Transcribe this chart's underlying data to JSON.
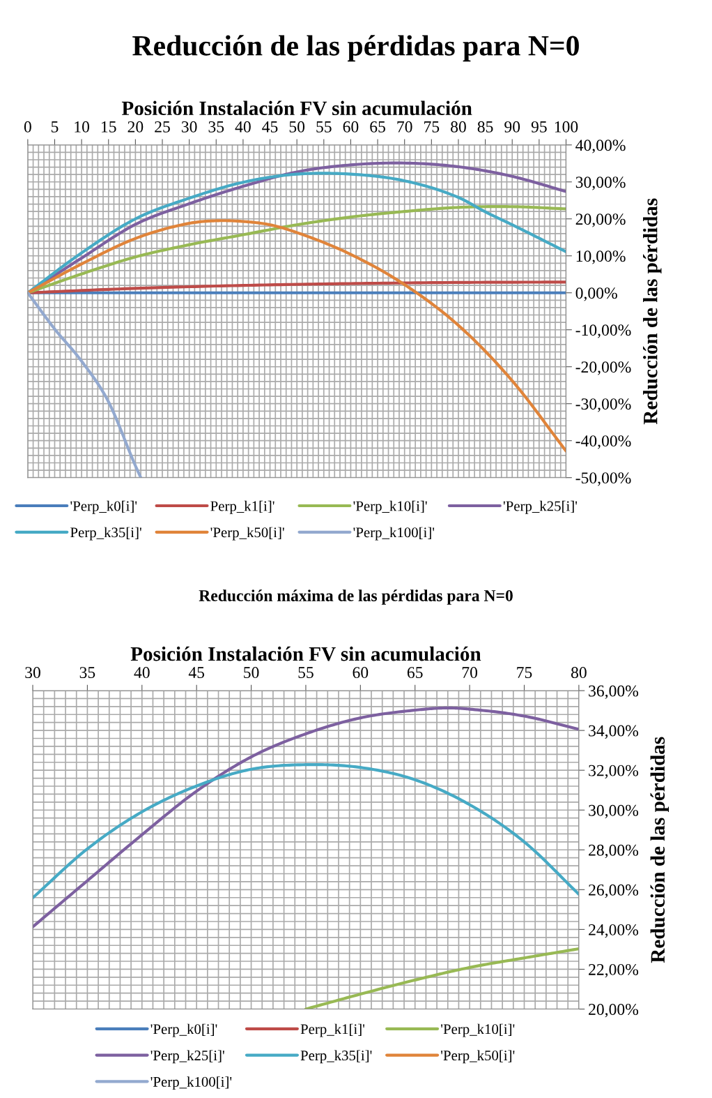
{
  "chart_data": [
    {
      "type": "line",
      "title": "Reducción de las pérdidas para N=0",
      "xlabel": "Posición Instalación FV sin acumulación",
      "ylabel": "Reducción de las pérdidas",
      "xlim": [
        0,
        100
      ],
      "xticks": [
        0,
        5,
        10,
        15,
        20,
        25,
        30,
        35,
        40,
        45,
        50,
        55,
        60,
        65,
        70,
        75,
        80,
        85,
        90,
        95,
        100
      ],
      "ylim": [
        -50,
        40
      ],
      "yticks": [
        {
          "value": -50,
          "label": "-50,00%"
        },
        {
          "value": -40,
          "label": "-40,00%"
        },
        {
          "value": -30,
          "label": "-30,00%"
        },
        {
          "value": -20,
          "label": "-20,00%"
        },
        {
          "value": -10,
          "label": "-10,00%"
        },
        {
          "value": 0,
          "label": "0,00%"
        },
        {
          "value": 10,
          "label": "10,00%"
        },
        {
          "value": 20,
          "label": "20,00%"
        },
        {
          "value": 30,
          "label": "30,00%"
        },
        {
          "value": 40,
          "label": "40,00%"
        }
      ],
      "grid": true,
      "legend": "bottom",
      "marker": "none",
      "line_style": "solid",
      "series": [
        {
          "name": "'Perp_k0[i]'",
          "color": "#4a7ebb",
          "x": [
            0,
            100
          ],
          "values": [
            0,
            0
          ]
        },
        {
          "name": "Perp_k1[i]'",
          "color": "#be4b48",
          "x": [
            0,
            20,
            40,
            60,
            80,
            100
          ],
          "values": [
            0,
            1.2,
            2.0,
            2.5,
            2.8,
            2.9
          ]
        },
        {
          "name": "'Perp_k10[i]'",
          "color": "#98b954",
          "x": [
            0,
            10,
            20,
            30,
            40,
            50,
            60,
            70,
            80,
            90,
            100
          ],
          "values": [
            0,
            5.1,
            9.7,
            13.0,
            15.7,
            18.4,
            20.5,
            22.0,
            23.1,
            23.3,
            22.7
          ]
        },
        {
          "name": "'Perp_k25[i]'",
          "color": "#7d60a0",
          "x": [
            0,
            10,
            20,
            30,
            40,
            50,
            60,
            70,
            80,
            90,
            100
          ],
          "values": [
            0,
            9.4,
            18.5,
            24.1,
            28.8,
            32.7,
            34.6,
            35.1,
            34.1,
            31.5,
            27.4
          ]
        },
        {
          "name": "Perp_k35[i]'",
          "color": "#46aac5",
          "x": [
            0,
            10,
            20,
            30,
            40,
            50,
            60,
            70,
            80,
            85,
            90,
            100
          ],
          "values": [
            0,
            10.8,
            20.0,
            25.6,
            29.9,
            32.1,
            32.1,
            30.3,
            25.8,
            21.9,
            18.4,
            11.1
          ]
        },
        {
          "name": "'Perp_k50[i]'",
          "color": "#e0843a",
          "x": [
            0,
            10,
            20,
            30,
            35,
            40,
            45,
            50,
            60,
            70,
            80,
            90,
            100
          ],
          "values": [
            0,
            7.8,
            14.7,
            18.8,
            19.5,
            19.3,
            18.4,
            16.3,
            10.4,
            2.2,
            -8.8,
            -23.8,
            -42.8
          ]
        },
        {
          "name": "'Perp_k100[i]'",
          "color": "#93a9cf",
          "x": [
            0,
            5,
            10,
            15,
            20,
            21
          ],
          "values": [
            0,
            -9.8,
            -18.5,
            -29.5,
            -46.8,
            -50
          ]
        }
      ]
    },
    {
      "type": "line",
      "title": "Reducción máxima de las pérdidas para N=0",
      "xlabel": "Posición Instalación FV sin acumulación",
      "ylabel": "Reducción de las pérdidas",
      "xlim": [
        30,
        80
      ],
      "xticks": [
        30,
        35,
        40,
        45,
        50,
        55,
        60,
        65,
        70,
        75,
        80
      ],
      "ylim": [
        20,
        36
      ],
      "yticks": [
        {
          "value": 20,
          "label": "20,00%"
        },
        {
          "value": 22,
          "label": "22,00%"
        },
        {
          "value": 24,
          "label": "24,00%"
        },
        {
          "value": 26,
          "label": "26,00%"
        },
        {
          "value": 28,
          "label": "28,00%"
        },
        {
          "value": 30,
          "label": "30,00%"
        },
        {
          "value": 32,
          "label": "32,00%"
        },
        {
          "value": 34,
          "label": "34,00%"
        },
        {
          "value": 36,
          "label": "36,00%"
        }
      ],
      "grid": true,
      "legend": "bottom",
      "marker": "none",
      "line_style": "solid",
      "series": [
        {
          "name": "'Perp_k0[i]'",
          "color": "#4a7ebb"
        },
        {
          "name": "Perp_k1[i]'",
          "color": "#be4b48"
        },
        {
          "name": "'Perp_k10[i]'",
          "color": "#98b954",
          "x": [
            55,
            60,
            65,
            70,
            75,
            80
          ],
          "values": [
            20.0,
            20.75,
            21.46,
            22.09,
            22.57,
            23.03
          ]
        },
        {
          "name": "'Perp_k25[i]'",
          "color": "#7d60a0",
          "x": [
            30,
            35,
            40,
            45,
            50,
            55,
            60,
            65,
            68,
            70,
            75,
            80
          ],
          "values": [
            24.13,
            26.45,
            28.76,
            30.95,
            32.67,
            33.83,
            34.63,
            35.02,
            35.13,
            35.07,
            34.72,
            34.06
          ]
        },
        {
          "name": "Perp_k35[i]'",
          "color": "#46aac5",
          "x": [
            30,
            35,
            40,
            45,
            50,
            55,
            60,
            65,
            70,
            75,
            80
          ],
          "values": [
            25.59,
            28.05,
            29.91,
            31.21,
            32.05,
            32.28,
            32.14,
            31.52,
            30.27,
            28.4,
            25.77
          ]
        },
        {
          "name": "'Perp_k50[i]'",
          "color": "#e0843a"
        },
        {
          "name": "'Perp_k100[i]'",
          "color": "#93a9cf"
        }
      ]
    }
  ]
}
